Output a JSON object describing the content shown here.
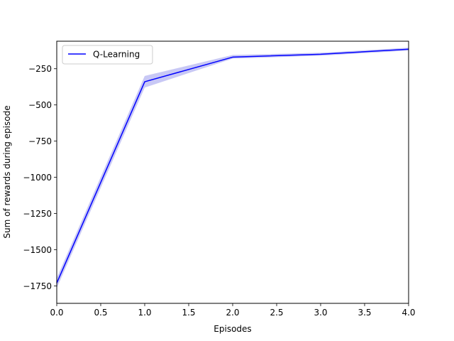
{
  "chart_data": {
    "type": "line",
    "title": "",
    "xlabel": "Episodes",
    "ylabel": "Sum of rewards during episode",
    "xlim": [
      0,
      4
    ],
    "ylim": [
      -1870,
      -60
    ],
    "x_ticks": [
      0,
      0.5,
      1,
      1.5,
      2,
      2.5,
      3,
      3.5,
      4
    ],
    "x_tick_labels": [
      "0.0",
      "0.5",
      "1.0",
      "1.5",
      "2.0",
      "2.5",
      "3.0",
      "3.5",
      "4.0"
    ],
    "y_ticks": [
      -1750,
      -1500,
      -1250,
      -1000,
      -750,
      -500,
      -250
    ],
    "y_tick_labels": [
      "−1750",
      "−1500",
      "−1250",
      "−1000",
      "−750",
      "−500",
      "−250"
    ],
    "grid": false,
    "legend_position": "upper-left",
    "x": [
      0,
      1,
      2,
      3,
      4
    ],
    "series": [
      {
        "name": "Q-Learning",
        "color": "#0000ff",
        "band_color": "#c8c8f5",
        "values": [
          -1730,
          -340,
          -170,
          -150,
          -115
        ],
        "band_lower": [
          -1765,
          -380,
          -180,
          -160,
          -125
        ],
        "band_upper": [
          -1695,
          -300,
          -155,
          -140,
          -105
        ]
      }
    ]
  }
}
